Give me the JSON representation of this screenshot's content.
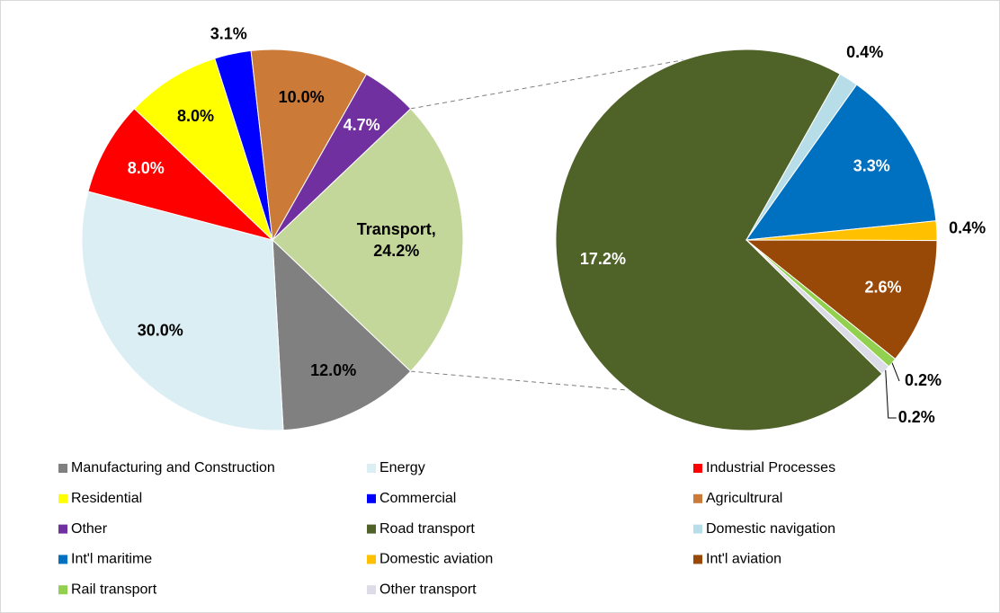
{
  "chart_data": {
    "type": "pie",
    "categories": [
      "Manufacturing and Construction",
      "Energy",
      "Industrial Processes",
      "Residential",
      "Commercial",
      "Agricultrural",
      "Other"
    ],
    "values": [
      12.0,
      30.0,
      8.0,
      8.0,
      3.1,
      10.0,
      4.7
    ],
    "value_labels": [
      "12.0%",
      "30.0%",
      "8.0%",
      "8.0%",
      "3.1%",
      "10.0%",
      "4.7%"
    ],
    "colors": [
      "#808080",
      "#dbeef4",
      "#ff0000",
      "#ffff00",
      "#0000ff",
      "#cc7a38",
      "#7030a0"
    ],
    "group": {
      "value": 24.2,
      "label": "Transport, 24.2%",
      "color": "#c4d79b",
      "categories": [
        "Road transport",
        "Domestic navigation",
        "Int'l maritime",
        "Domestic aviation",
        "Int'l aviation",
        "Rail transport",
        "Other transport"
      ],
      "values": [
        17.2,
        0.4,
        3.3,
        0.4,
        2.6,
        0.2,
        0.2
      ],
      "value_labels": [
        "17.2%",
        "0.4%",
        "3.3%",
        "0.4%",
        "2.6%",
        "0.2%",
        "0.2%"
      ],
      "colors": [
        "#4f6228",
        "#b7dee8",
        "#0070c0",
        "#ffc000",
        "#984807",
        "#92d050",
        "#dcdce8"
      ]
    },
    "legend": "bottom"
  }
}
